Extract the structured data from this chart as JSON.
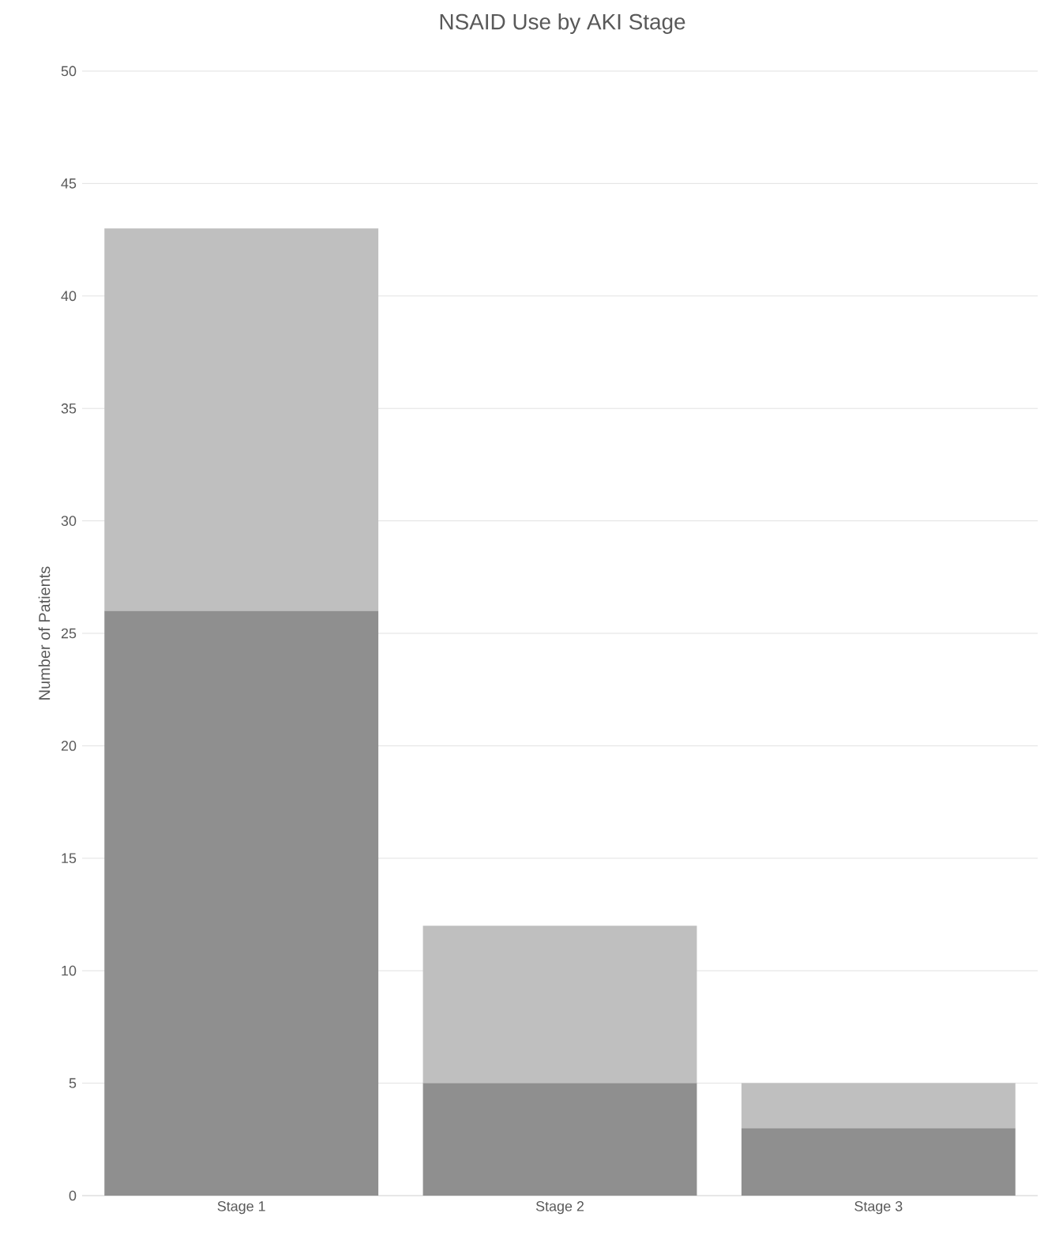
{
  "chart_data": {
    "type": "bar",
    "title": "NSAID Use by AKI Stage",
    "ylabel": "Number of Patients",
    "categories": [
      "Stage 1",
      "Stage 2",
      "Stage 3"
    ],
    "stacked": true,
    "grid": "y",
    "ylim": [
      0,
      50
    ],
    "yticks": [
      0,
      5,
      10,
      15,
      20,
      25,
      30,
      35,
      40,
      45,
      50
    ],
    "series": [
      {
        "color": "#8f8f8f",
        "values": [
          26,
          5,
          3
        ]
      },
      {
        "color": "#bfbfbf",
        "values": [
          17,
          7,
          2
        ]
      }
    ]
  }
}
